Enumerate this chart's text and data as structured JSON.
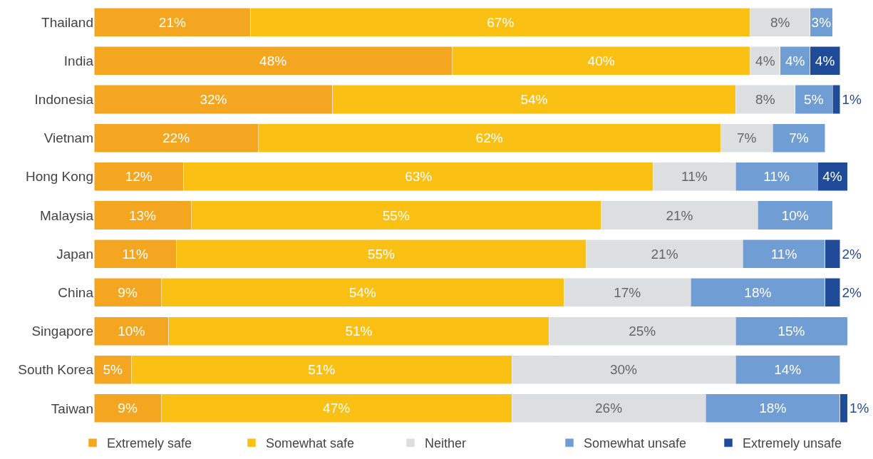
{
  "chart_data": {
    "type": "bar",
    "orientation": "horizontal",
    "stacked": true,
    "categories": [
      "Thailand",
      "India",
      "Indonesia",
      "Vietnam",
      "Hong Kong",
      "Malaysia",
      "Japan",
      "China",
      "Singapore",
      "South Korea",
      "Taiwan"
    ],
    "series": [
      {
        "name": "Extremely safe",
        "color": "#f4a620",
        "values": [
          21,
          48,
          32,
          22,
          12,
          13,
          11,
          9,
          10,
          5,
          9
        ],
        "value_labels": [
          "21%",
          "48%",
          "32%",
          "22%",
          "12%",
          "13%",
          "11%",
          "9%",
          "10%",
          "5%",
          "9%"
        ]
      },
      {
        "name": "Somewhat safe",
        "color": "#fbc014",
        "values": [
          67,
          40,
          54,
          62,
          63,
          55,
          55,
          54,
          51,
          51,
          47
        ],
        "value_labels": [
          "67%",
          "40%",
          "54%",
          "62%",
          "63%",
          "55%",
          "55%",
          "54%",
          "51%",
          "51%",
          "47%"
        ]
      },
      {
        "name": "Neither",
        "color": "#dddee0",
        "values": [
          8,
          4,
          8,
          7,
          11,
          21,
          21,
          17,
          25,
          30,
          26
        ],
        "value_labels": [
          "8%",
          "4%",
          "8%",
          "7%",
          "11%",
          "21%",
          "21%",
          "17%",
          "25%",
          "30%",
          "26%"
        ]
      },
      {
        "name": "Somewhat unsafe",
        "color": "#709dd3",
        "values": [
          3,
          4,
          5,
          7,
          11,
          10,
          11,
          18,
          15,
          14,
          18
        ],
        "value_labels": [
          "3%",
          "4%",
          "5%",
          "7%",
          "11%",
          "10%",
          "11%",
          "18%",
          "15%",
          "14%",
          "18%"
        ]
      },
      {
        "name": "Extremely unsafe",
        "color": "#1f4b99",
        "values": [
          null,
          4,
          1,
          null,
          4,
          null,
          2,
          2,
          null,
          null,
          1
        ],
        "value_labels": [
          null,
          "4%",
          "1%",
          null,
          "4%",
          null,
          "2%",
          "2%",
          null,
          null,
          "1%"
        ]
      }
    ],
    "xlim": [
      0,
      101
    ],
    "tick_labels": "y",
    "legend": "bottom"
  }
}
